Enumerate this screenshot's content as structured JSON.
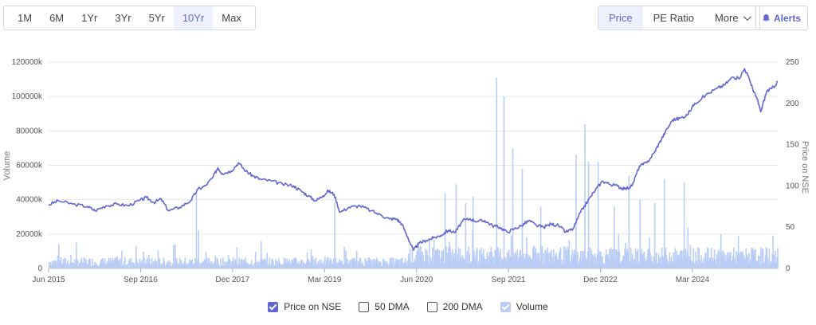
{
  "ranges": [
    {
      "label": "1M",
      "active": false
    },
    {
      "label": "6M",
      "active": false
    },
    {
      "label": "1Yr",
      "active": false
    },
    {
      "label": "3Yr",
      "active": false
    },
    {
      "label": "5Yr",
      "active": false
    },
    {
      "label": "10Yr",
      "active": true
    },
    {
      "label": "Max",
      "active": false
    }
  ],
  "metrics": [
    {
      "label": "Price",
      "active": true
    },
    {
      "label": "PE Ratio",
      "active": false
    },
    {
      "label": "More",
      "active": false
    }
  ],
  "alerts_label": "Alerts",
  "legend": [
    {
      "label": "Price on NSE",
      "checked": true,
      "color": "#6366d1"
    },
    {
      "label": "50 DMA",
      "checked": false,
      "color": "#555555"
    },
    {
      "label": "200 DMA",
      "checked": false,
      "color": "#555555"
    },
    {
      "label": "Volume",
      "checked": true,
      "color": "#b9cdf6"
    }
  ],
  "colors": {
    "accent": "#6366d1",
    "price_line": "#6366d1",
    "volume_bar": "#b9cdf6",
    "grid": "#e6e6e6"
  },
  "chart_data": {
    "type": "line",
    "x_ticks": [
      "Jun 2015",
      "Sep 2016",
      "Dec 2017",
      "Mar 2019",
      "Jun 2020",
      "Sep 2021",
      "Dec 2022",
      "Mar 2024"
    ],
    "x_range": [
      2015.42,
      2025.33
    ],
    "y_left_label": "Volume",
    "y_left_ticks": [
      "0",
      "20000k",
      "40000k",
      "60000k",
      "80000k",
      "100000k",
      "120000k"
    ],
    "y_left_range": [
      0,
      120000
    ],
    "y_right_label": "Price on NSE",
    "y_right_ticks": [
      "0",
      "50",
      "100",
      "150",
      "200",
      "250"
    ],
    "y_right_range": [
      0,
      250
    ],
    "series": [
      {
        "name": "Price on NSE",
        "axis": "right",
        "points": [
          [
            2015.42,
            77
          ],
          [
            2015.55,
            82
          ],
          [
            2015.75,
            78
          ],
          [
            2015.95,
            75
          ],
          [
            2016.05,
            70
          ],
          [
            2016.2,
            76
          ],
          [
            2016.35,
            78
          ],
          [
            2016.5,
            76
          ],
          [
            2016.65,
            82
          ],
          [
            2016.75,
            86
          ],
          [
            2016.85,
            80
          ],
          [
            2016.95,
            84
          ],
          [
            2017.05,
            70
          ],
          [
            2017.2,
            74
          ],
          [
            2017.35,
            82
          ],
          [
            2017.45,
            96
          ],
          [
            2017.55,
            100
          ],
          [
            2017.65,
            110
          ],
          [
            2017.72,
            122
          ],
          [
            2017.78,
            115
          ],
          [
            2017.9,
            118
          ],
          [
            2018.0,
            128
          ],
          [
            2018.1,
            118
          ],
          [
            2018.2,
            112
          ],
          [
            2018.3,
            108
          ],
          [
            2018.45,
            106
          ],
          [
            2018.6,
            102
          ],
          [
            2018.75,
            100
          ],
          [
            2018.85,
            94
          ],
          [
            2018.95,
            88
          ],
          [
            2019.05,
            82
          ],
          [
            2019.15,
            88
          ],
          [
            2019.22,
            94
          ],
          [
            2019.3,
            90
          ],
          [
            2019.38,
            68
          ],
          [
            2019.5,
            74
          ],
          [
            2019.65,
            76
          ],
          [
            2019.8,
            70
          ],
          [
            2019.95,
            64
          ],
          [
            2020.05,
            60
          ],
          [
            2020.15,
            60
          ],
          [
            2020.22,
            54
          ],
          [
            2020.3,
            38
          ],
          [
            2020.38,
            22
          ],
          [
            2020.45,
            30
          ],
          [
            2020.55,
            34
          ],
          [
            2020.65,
            37
          ],
          [
            2020.75,
            40
          ],
          [
            2020.85,
            46
          ],
          [
            2020.95,
            44
          ],
          [
            2021.05,
            58
          ],
          [
            2021.15,
            60
          ],
          [
            2021.25,
            57
          ],
          [
            2021.35,
            58
          ],
          [
            2021.45,
            52
          ],
          [
            2021.55,
            50
          ],
          [
            2021.65,
            44
          ],
          [
            2021.75,
            48
          ],
          [
            2021.85,
            52
          ],
          [
            2021.95,
            58
          ],
          [
            2022.05,
            52
          ],
          [
            2022.15,
            50
          ],
          [
            2022.25,
            54
          ],
          [
            2022.35,
            52
          ],
          [
            2022.45,
            44
          ],
          [
            2022.55,
            48
          ],
          [
            2022.65,
            68
          ],
          [
            2022.75,
            82
          ],
          [
            2022.85,
            95
          ],
          [
            2022.95,
            106
          ],
          [
            2023.05,
            102
          ],
          [
            2023.15,
            100
          ],
          [
            2023.25,
            96
          ],
          [
            2023.35,
            100
          ],
          [
            2023.45,
            124
          ],
          [
            2023.55,
            128
          ],
          [
            2023.65,
            140
          ],
          [
            2023.72,
            152
          ],
          [
            2023.8,
            165
          ],
          [
            2023.9,
            180
          ],
          [
            2024.0,
            182
          ],
          [
            2024.1,
            186
          ],
          [
            2024.2,
            200
          ],
          [
            2024.35,
            210
          ],
          [
            2024.5,
            218
          ],
          [
            2024.6,
            222
          ],
          [
            2024.72,
            232
          ],
          [
            2024.8,
            230
          ],
          [
            2024.88,
            242
          ],
          [
            2024.95,
            228
          ],
          [
            2025.0,
            215
          ],
          [
            2025.05,
            205
          ],
          [
            2025.1,
            190
          ],
          [
            2025.18,
            215
          ],
          [
            2025.25,
            218
          ],
          [
            2025.33,
            226
          ]
        ]
      },
      {
        "name": "Volume",
        "axis": "left",
        "spikes": [
          [
            2015.55,
            14000
          ],
          [
            2016.6,
            13000
          ],
          [
            2017.42,
            44000
          ],
          [
            2017.45,
            22000
          ],
          [
            2018.3,
            16000
          ],
          [
            2019.3,
            38000
          ],
          [
            2020.55,
            8000
          ],
          [
            2020.8,
            44000
          ],
          [
            2020.95,
            49000
          ],
          [
            2021.08,
            38000
          ],
          [
            2021.18,
            42000
          ],
          [
            2021.5,
            111000
          ],
          [
            2021.6,
            100000
          ],
          [
            2021.72,
            70000
          ],
          [
            2021.85,
            58000
          ],
          [
            2022.1,
            36000
          ],
          [
            2022.58,
            66000
          ],
          [
            2022.7,
            84000
          ],
          [
            2022.75,
            62000
          ],
          [
            2022.88,
            62000
          ],
          [
            2023.1,
            36000
          ],
          [
            2023.3,
            54000
          ],
          [
            2023.45,
            40000
          ],
          [
            2023.65,
            38000
          ],
          [
            2023.78,
            52000
          ],
          [
            2024.05,
            50000
          ],
          [
            2024.1,
            24000
          ],
          [
            2024.55,
            20000
          ]
        ]
      }
    ],
    "grid": true,
    "legend_position": "bottom"
  }
}
